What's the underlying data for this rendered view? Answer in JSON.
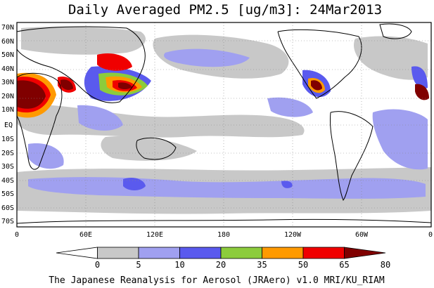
{
  "title": "Daily Averaged PM2.5 [ug/m3]: 24Mar2013",
  "footer": "The Japanese Reanalysis for Aerosol (JRAero) v1.0 MRI/KU_RIAM",
  "lat_labels": [
    "70N",
    "60N",
    "50N",
    "40N",
    "30N",
    "20N",
    "10N",
    "EQ",
    "10S",
    "20S",
    "30S",
    "40S",
    "50S",
    "60S",
    "70S"
  ],
  "lon_labels": [
    "0",
    "60E",
    "120E",
    "180",
    "120W",
    "60W",
    "0"
  ],
  "colorbar": {
    "levels": [
      "0",
      "5",
      "10",
      "20",
      "35",
      "50",
      "65",
      "80"
    ],
    "colors": [
      "#ffffff",
      "#c8c8c8",
      "#a0a0f0",
      "#5a5aee",
      "#8ccc3c",
      "#ff9a00",
      "#f00000",
      "#800000"
    ]
  },
  "colors": {
    "land_outline": "#000000",
    "grid": "#888888"
  }
}
